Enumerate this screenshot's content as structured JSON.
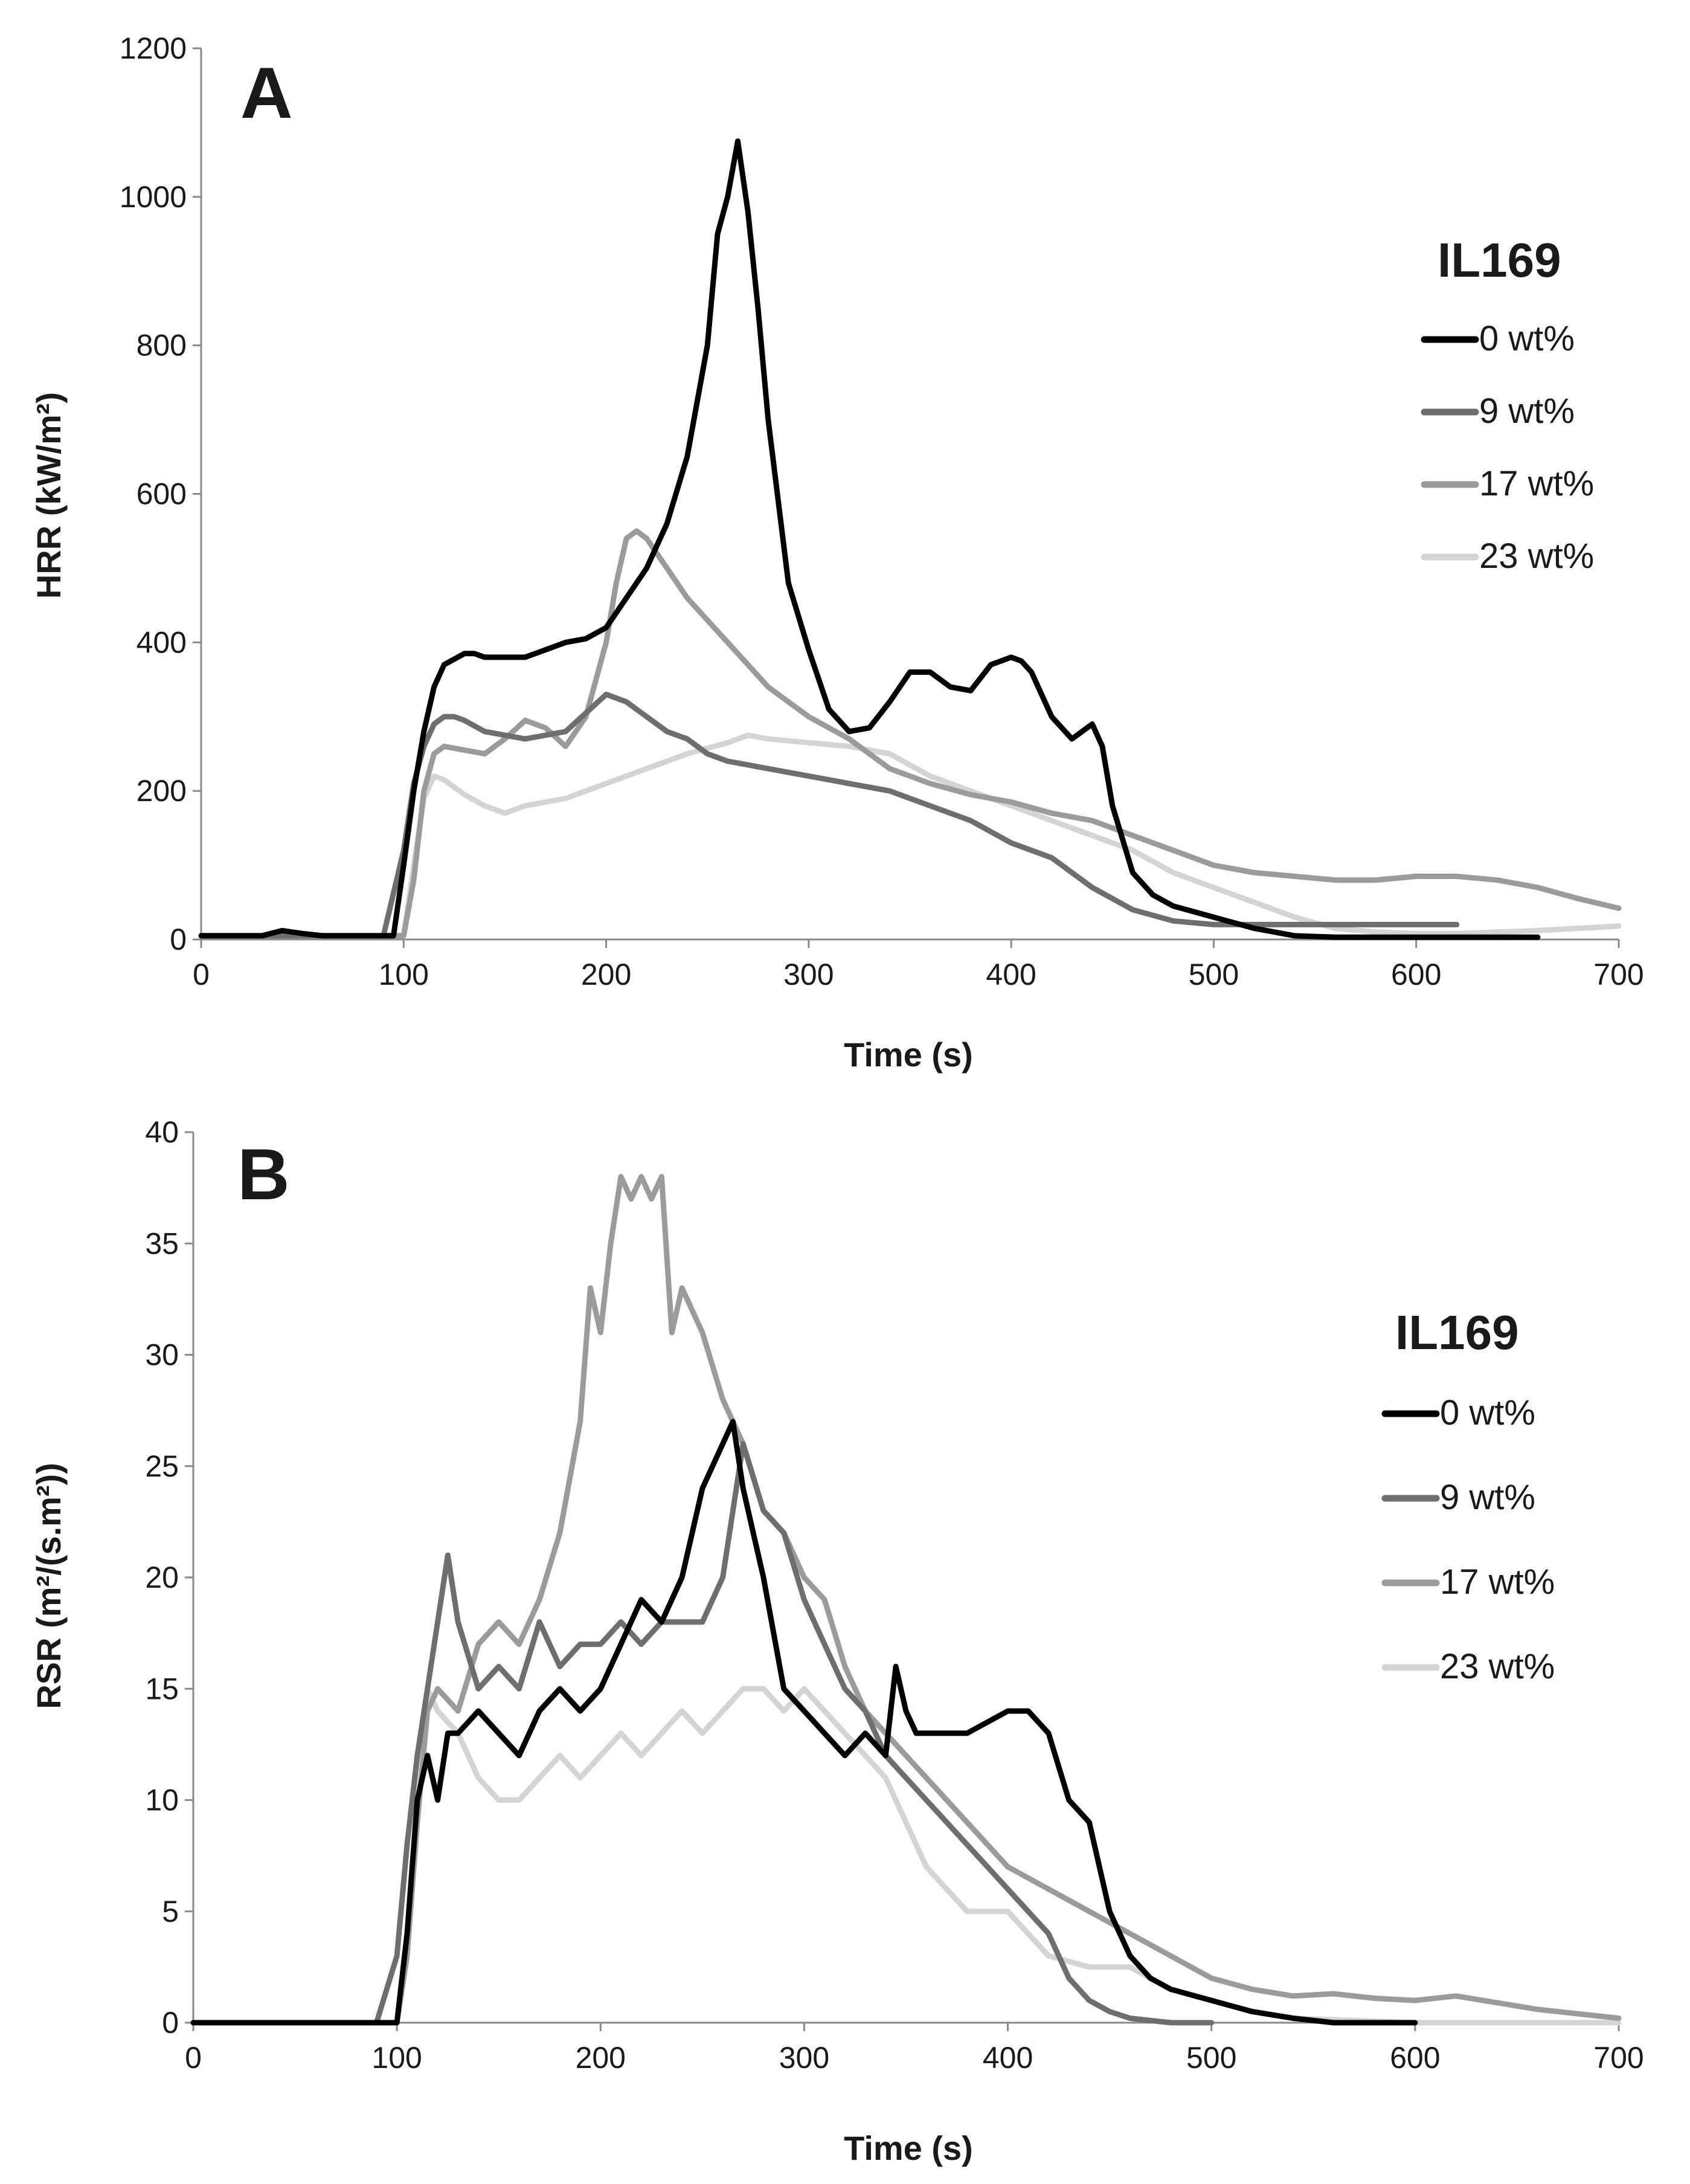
{
  "chart_data": [
    {
      "type": "line",
      "panel": "A",
      "title": "",
      "xlabel": "Time (s)",
      "ylabel": "HRR (kW/m²)",
      "xlim": [
        0,
        700
      ],
      "ylim": [
        0,
        1200
      ],
      "xticks": [
        "0",
        "100",
        "200",
        "300",
        "400",
        "500",
        "600",
        "700"
      ],
      "yticks": [
        "0",
        "200",
        "400",
        "600",
        "800",
        "1000",
        "1200"
      ],
      "grid": false,
      "legend_title": "IL169",
      "legend_position": "right",
      "series": [
        {
          "name": "0 wt%",
          "color": "#000000",
          "x": [
            0,
            30,
            40,
            50,
            60,
            80,
            95,
            100,
            105,
            110,
            115,
            120,
            130,
            135,
            140,
            150,
            160,
            170,
            180,
            190,
            200,
            210,
            220,
            230,
            240,
            250,
            255,
            260,
            265,
            270,
            275,
            280,
            290,
            300,
            310,
            320,
            330,
            340,
            350,
            360,
            370,
            380,
            390,
            400,
            405,
            410,
            420,
            430,
            440,
            445,
            450,
            460,
            470,
            480,
            500,
            520,
            540,
            560,
            600,
            660
          ],
          "y": [
            5,
            5,
            12,
            8,
            5,
            5,
            5,
            100,
            200,
            280,
            340,
            370,
            385,
            385,
            380,
            380,
            380,
            390,
            400,
            405,
            420,
            460,
            500,
            560,
            650,
            800,
            950,
            1000,
            1075,
            980,
            850,
            700,
            480,
            390,
            310,
            280,
            285,
            320,
            360,
            360,
            340,
            335,
            370,
            380,
            375,
            360,
            300,
            270,
            290,
            260,
            180,
            90,
            60,
            45,
            30,
            15,
            5,
            3,
            3,
            3
          ]
        },
        {
          "name": "9 wt%",
          "color": "#6e6e6e",
          "x": [
            0,
            90,
            100,
            105,
            110,
            115,
            120,
            125,
            130,
            140,
            160,
            180,
            200,
            210,
            220,
            230,
            240,
            250,
            260,
            270,
            280,
            300,
            320,
            340,
            360,
            380,
            400,
            420,
            440,
            460,
            480,
            500,
            520,
            540,
            560,
            580,
            600,
            620
          ],
          "y": [
            5,
            5,
            120,
            210,
            260,
            290,
            300,
            300,
            295,
            280,
            270,
            280,
            330,
            320,
            300,
            280,
            270,
            250,
            240,
            235,
            230,
            220,
            210,
            200,
            180,
            160,
            130,
            110,
            70,
            40,
            25,
            20,
            20,
            20,
            20,
            20,
            20,
            20
          ]
        },
        {
          "name": "17 wt%",
          "color": "#9b9b9b",
          "x": [
            0,
            100,
            105,
            110,
            115,
            120,
            130,
            140,
            150,
            160,
            170,
            180,
            190,
            200,
            205,
            210,
            215,
            220,
            230,
            240,
            250,
            260,
            270,
            280,
            290,
            300,
            320,
            340,
            360,
            380,
            400,
            420,
            440,
            460,
            480,
            500,
            520,
            540,
            560,
            580,
            600,
            620,
            640,
            660,
            680,
            700
          ],
          "y": [
            5,
            5,
            80,
            200,
            250,
            260,
            255,
            250,
            270,
            295,
            285,
            260,
            300,
            400,
            480,
            540,
            550,
            540,
            500,
            460,
            430,
            400,
            370,
            340,
            320,
            300,
            270,
            230,
            210,
            195,
            185,
            170,
            160,
            140,
            120,
            100,
            90,
            85,
            80,
            80,
            85,
            85,
            80,
            70,
            55,
            42
          ]
        },
        {
          "name": "23 wt%",
          "color": "#d4d4d4",
          "x": [
            0,
            100,
            105,
            110,
            115,
            120,
            130,
            140,
            150,
            160,
            180,
            200,
            220,
            240,
            260,
            270,
            280,
            300,
            320,
            340,
            360,
            380,
            400,
            420,
            440,
            460,
            480,
            500,
            520,
            540,
            560,
            580,
            600,
            620,
            640,
            660,
            680,
            700
          ],
          "y": [
            5,
            5,
            100,
            190,
            220,
            215,
            195,
            180,
            170,
            180,
            190,
            210,
            230,
            250,
            265,
            275,
            270,
            265,
            260,
            250,
            220,
            200,
            180,
            160,
            140,
            120,
            90,
            70,
            50,
            30,
            15,
            10,
            8,
            8,
            10,
            12,
            15,
            18
          ]
        }
      ]
    },
    {
      "type": "line",
      "panel": "B",
      "title": "",
      "xlabel": "Time (s)",
      "ylabel": "RSR (m²/(s.m²))",
      "xlim": [
        0,
        700
      ],
      "ylim": [
        0,
        40
      ],
      "xticks": [
        "0",
        "100",
        "200",
        "300",
        "400",
        "500",
        "600",
        "700"
      ],
      "yticks": [
        "0",
        "5",
        "10",
        "15",
        "20",
        "25",
        "30",
        "35",
        "40"
      ],
      "grid": false,
      "legend_title": "IL169",
      "legend_position": "right",
      "series": [
        {
          "name": "0 wt%",
          "color": "#000000",
          "x": [
            0,
            100,
            105,
            110,
            115,
            120,
            125,
            130,
            140,
            150,
            160,
            170,
            180,
            190,
            200,
            210,
            220,
            230,
            240,
            250,
            260,
            265,
            270,
            275,
            280,
            290,
            300,
            310,
            320,
            330,
            340,
            345,
            350,
            355,
            360,
            380,
            400,
            410,
            420,
            430,
            440,
            450,
            460,
            470,
            480,
            500,
            520,
            540,
            560,
            600
          ],
          "y": [
            0,
            0,
            4,
            10,
            12,
            10,
            13,
            13,
            14,
            13,
            12,
            14,
            15,
            14,
            15,
            17,
            19,
            18,
            20,
            24,
            26,
            27,
            24,
            22,
            20,
            15,
            14,
            13,
            12,
            13,
            12,
            16,
            14,
            13,
            13,
            13,
            14,
            14,
            13,
            10,
            9,
            5,
            3,
            2,
            1.5,
            1,
            0.5,
            0.2,
            0,
            0
          ]
        },
        {
          "name": "9 wt%",
          "color": "#6e6e6e",
          "x": [
            0,
            90,
            100,
            105,
            110,
            115,
            120,
            125,
            130,
            140,
            150,
            160,
            170,
            180,
            190,
            200,
            210,
            220,
            230,
            240,
            250,
            260,
            270,
            280,
            290,
            300,
            310,
            320,
            330,
            340,
            350,
            360,
            370,
            380,
            390,
            400,
            410,
            420,
            430,
            440,
            450,
            460,
            480,
            500
          ],
          "y": [
            0,
            0,
            3,
            8,
            12,
            15,
            18,
            21,
            18,
            15,
            16,
            15,
            18,
            16,
            17,
            17,
            18,
            17,
            18,
            18,
            18,
            20,
            26,
            23,
            22,
            19,
            17,
            15,
            14,
            12,
            11,
            10,
            9,
            8,
            7,
            6,
            5,
            4,
            2,
            1,
            0.5,
            0.2,
            0,
            0
          ]
        },
        {
          "name": "17 wt%",
          "color": "#9b9b9b",
          "x": [
            0,
            100,
            105,
            110,
            115,
            120,
            130,
            140,
            150,
            160,
            170,
            180,
            190,
            195,
            200,
            205,
            210,
            215,
            220,
            225,
            230,
            235,
            240,
            250,
            260,
            270,
            280,
            290,
            300,
            310,
            320,
            330,
            340,
            350,
            360,
            380,
            400,
            420,
            440,
            460,
            480,
            500,
            520,
            540,
            560,
            580,
            600,
            620,
            640,
            660,
            680,
            700
          ],
          "y": [
            0,
            0,
            3,
            9,
            14,
            15,
            14,
            17,
            18,
            17,
            19,
            22,
            27,
            33,
            31,
            35,
            38,
            37,
            38,
            37,
            38,
            31,
            33,
            31,
            28,
            26,
            23,
            22,
            20,
            19,
            16,
            14,
            13,
            12,
            11,
            9,
            7,
            6,
            5,
            4,
            3,
            2,
            1.5,
            1.2,
            1.3,
            1.1,
            1.0,
            1.2,
            0.9,
            0.6,
            0.4,
            0.2
          ]
        },
        {
          "name": "23 wt%",
          "color": "#d4d4d4",
          "x": [
            0,
            100,
            105,
            110,
            115,
            120,
            130,
            140,
            150,
            160,
            170,
            180,
            190,
            200,
            210,
            220,
            230,
            240,
            250,
            260,
            270,
            280,
            290,
            300,
            310,
            320,
            340,
            360,
            370,
            380,
            400,
            420,
            440,
            460,
            480,
            500,
            520,
            540,
            600,
            700
          ],
          "y": [
            0,
            0,
            3,
            10,
            15,
            14,
            13,
            11,
            10,
            10,
            11,
            12,
            11,
            12,
            13,
            12,
            13,
            14,
            13,
            14,
            15,
            15,
            14,
            15,
            14,
            13,
            11,
            7,
            6,
            5,
            5,
            3,
            2.5,
            2.5,
            1.5,
            1,
            0.5,
            0.2,
            0,
            0
          ]
        }
      ]
    }
  ]
}
